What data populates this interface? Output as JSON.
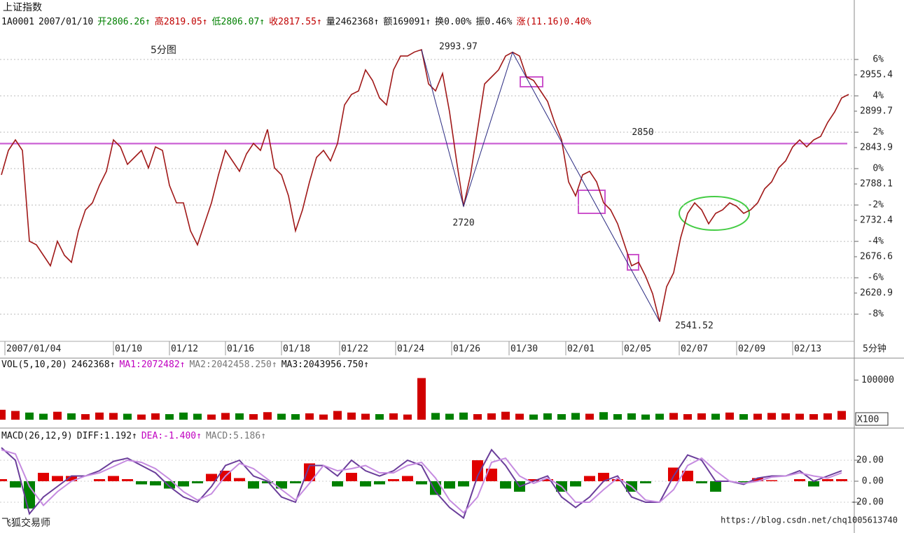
{
  "header": {
    "title": "上证指数",
    "items": [
      "1A0001",
      "2007/01/10",
      "开2806.26↑",
      "高2819.05↑",
      "低2806.07↑",
      "收2817.55↑",
      "量2462368↑",
      "额169091↑",
      "换0.00%",
      "振0.46%",
      "涨(11.16)0.40%"
    ]
  },
  "chart_data": [
    {
      "type": "line",
      "color": "#a01818",
      "grid": true,
      "annotations": [
        "5分图",
        "2993.97",
        "2720",
        "2541.52"
      ],
      "reference_line": 2850,
      "period_label": "5分钟",
      "x": [
        0,
        1,
        2,
        3,
        4,
        5,
        6,
        7,
        8,
        9,
        10,
        11,
        12,
        13,
        14,
        15,
        16,
        17,
        18,
        19,
        20,
        21,
        22,
        23,
        24,
        25,
        26,
        27,
        28,
        29,
        30,
        31,
        32,
        33,
        34,
        35,
        36,
        37,
        38,
        39,
        40,
        41,
        42,
        43,
        44,
        45,
        46,
        47,
        48,
        49,
        50,
        51,
        52,
        53,
        54,
        55,
        56,
        57,
        58,
        59,
        60,
        61,
        62,
        63,
        64,
        65,
        66,
        67,
        68,
        69,
        70,
        71,
        72,
        73,
        74,
        75,
        76,
        77,
        78,
        79,
        80,
        81,
        82,
        83,
        84,
        85,
        86,
        87,
        88,
        89,
        90,
        91,
        92,
        93,
        94,
        95,
        96,
        97,
        98,
        99,
        100,
        101,
        102,
        103,
        104,
        105,
        106,
        107,
        108,
        109,
        110,
        111,
        112,
        113,
        114,
        115,
        116,
        117,
        118,
        119,
        120,
        121
      ],
      "values": [
        2802.1,
        2839.6,
        2855.7,
        2839.6,
        2700.3,
        2694.9,
        2678.8,
        2662.7,
        2700.3,
        2678.8,
        2668.1,
        2716.3,
        2748.5,
        2759.2,
        2786.0,
        2807.5,
        2855.7,
        2845.0,
        2818.2,
        2828.9,
        2839.6,
        2812.8,
        2845.0,
        2839.6,
        2786.0,
        2759.2,
        2759.2,
        2716.3,
        2694.9,
        2727.1,
        2759.2,
        2802.1,
        2839.6,
        2823.5,
        2807.5,
        2834.3,
        2850.3,
        2839.6,
        2871.8,
        2812.8,
        2802.1,
        2769.9,
        2716.3,
        2748.5,
        2791.4,
        2828.9,
        2839.6,
        2823.5,
        2850.3,
        2909.3,
        2925.4,
        2930.7,
        2963.0,
        2946.8,
        2920.0,
        2909.3,
        2963.0,
        2984.3,
        2984.3,
        2990.5,
        2994.0,
        2941.5,
        2930.7,
        2957.5,
        2898.6,
        2823.5,
        2753.9,
        2802.1,
        2871.8,
        2941.5,
        2952.2,
        2963.0,
        2984.3,
        2990.0,
        2984.3,
        2952.2,
        2946.8,
        2930.7,
        2914.7,
        2882.5,
        2855.7,
        2791.4,
        2769.9,
        2802.1,
        2807.5,
        2791.4,
        2759.2,
        2748.5,
        2727.1,
        2694.9,
        2662.7,
        2668.1,
        2646.7,
        2619.9,
        2577.0,
        2630.6,
        2652.0,
        2705.6,
        2743.1,
        2759.2,
        2748.5,
        2727.1,
        2743.1,
        2748.5,
        2759.2,
        2753.9,
        2743.1,
        2748.5,
        2759.2,
        2780.7,
        2791.4,
        2812.8,
        2823.5,
        2845.0,
        2855.7,
        2845.0,
        2855.7,
        2861.1,
        2882.5,
        2898.6,
        2920.0,
        2925.4
      ],
      "xlim": [
        0,
        121.5
      ],
      "xticks": [
        {
          "value": 0.5,
          "label": "2007/01/04"
        },
        {
          "value": 16,
          "label": "01/10"
        },
        {
          "value": 24,
          "label": "01/12"
        },
        {
          "value": 32,
          "label": "01/16"
        },
        {
          "value": 40,
          "label": "01/18"
        },
        {
          "value": 48.3,
          "label": "01/22"
        },
        {
          "value": 56.3,
          "label": "01/24"
        },
        {
          "value": 64.3,
          "label": "01/26"
        },
        {
          "value": 72.5,
          "label": "01/30"
        },
        {
          "value": 80.6,
          "label": "02/01"
        },
        {
          "value": 88.7,
          "label": "02/05"
        },
        {
          "value": 96.8,
          "label": "02/07"
        },
        {
          "value": 105,
          "label": "02/09"
        },
        {
          "value": 113,
          "label": "02/13"
        }
      ],
      "ylim": [
        2550.1,
        3048.7
      ],
      "yticks": [
        2955.4,
        2899.7,
        2843.9,
        2788.1,
        2732.4,
        2676.6,
        2620.9
      ],
      "y2lim": [
        -9.38,
        8.5
      ],
      "y2ticks": [
        {
          "value": 6,
          "label": "6%"
        },
        {
          "value": 4,
          "label": "4%"
        },
        {
          "value": 2,
          "label": "2%"
        },
        {
          "value": 0,
          "label": "0%"
        },
        {
          "value": -2,
          "label": "-2%"
        },
        {
          "value": -4,
          "label": "-4%"
        },
        {
          "value": -6,
          "label": "-6%"
        },
        {
          "value": -8,
          "label": "-8%"
        }
      ]
    },
    {
      "type": "bar",
      "header": [
        "VOL(5,10,20)",
        "2462368↑",
        "MA1:2072482↑",
        "MA2:2042458.250↑",
        "MA3:2043956.750↑"
      ],
      "unit_label": "X100",
      "up_color": "#d00000",
      "down_color": "#008000",
      "x": [
        0,
        2,
        4,
        6,
        8,
        10,
        12,
        14,
        16,
        18,
        20,
        22,
        24,
        26,
        28,
        30,
        32,
        34,
        36,
        38,
        40,
        42,
        44,
        46,
        48,
        50,
        52,
        54,
        56,
        58,
        60,
        62,
        64,
        66,
        68,
        70,
        72,
        74,
        76,
        78,
        80,
        82,
        84,
        86,
        88,
        90,
        92,
        94,
        96,
        98,
        100,
        102,
        104,
        106,
        108,
        110,
        112,
        114,
        116,
        118,
        120
      ],
      "values": [
        25000,
        22000,
        18000,
        15000,
        20000,
        16000,
        14000,
        18000,
        17000,
        15000,
        13000,
        16000,
        14000,
        18000,
        15000,
        13000,
        17000,
        16000,
        14000,
        19000,
        15000,
        14000,
        16000,
        13000,
        22000,
        18000,
        15000,
        14000,
        16000,
        13000,
        105000,
        17000,
        15000,
        18000,
        14000,
        16000,
        20000,
        15000,
        13000,
        16000,
        14000,
        17000,
        15000,
        19000,
        14000,
        16000,
        13000,
        15000,
        17000,
        14000,
        16000,
        15000,
        18000,
        14000,
        15000,
        17000,
        16000,
        15000,
        14000,
        16000,
        22000
      ],
      "xlim": [
        0,
        121.5
      ],
      "ylim": [
        0,
        150000
      ],
      "yticks": [
        100000
      ]
    },
    {
      "type": "macd",
      "header": [
        "MACD(26,12,9)",
        "DIFF:1.192↑",
        "DEA:-1.400↑",
        "MACD:5.186↑"
      ],
      "x": [
        0,
        2,
        4,
        6,
        8,
        10,
        12,
        14,
        16,
        18,
        20,
        22,
        24,
        26,
        28,
        30,
        32,
        34,
        36,
        38,
        40,
        42,
        44,
        46,
        48,
        50,
        52,
        54,
        56,
        58,
        60,
        62,
        64,
        66,
        68,
        70,
        72,
        74,
        76,
        78,
        80,
        82,
        84,
        86,
        88,
        90,
        92,
        94,
        96,
        98,
        100,
        102,
        104,
        106,
        108,
        110,
        112,
        114,
        116,
        118,
        120
      ],
      "series": [
        {
          "color": "#6a3d9a",
          "values": [
            32,
            20,
            -31,
            -15,
            -5,
            5,
            5,
            10,
            19,
            22,
            15,
            8,
            -5,
            -15,
            -20,
            -5,
            15,
            20,
            5,
            0,
            -15,
            -20,
            15,
            15,
            5,
            20,
            10,
            5,
            10,
            20,
            15,
            -10,
            -25,
            -35,
            5,
            30,
            15,
            -5,
            0,
            5,
            -15,
            -25,
            -15,
            0,
            5,
            -15,
            -20,
            -20,
            5,
            25,
            20,
            0,
            0,
            -3,
            3,
            5,
            5,
            10,
            0,
            5,
            10
          ]
        },
        {
          "color": "#c58be0",
          "values": [
            30,
            26,
            -5,
            -23,
            -10,
            0,
            5,
            8,
            14,
            20,
            18,
            12,
            2,
            -10,
            -18,
            -12,
            5,
            17,
            12,
            2,
            -8,
            -18,
            -2,
            15,
            10,
            12,
            15,
            8,
            8,
            15,
            18,
            3,
            -18,
            -30,
            -15,
            18,
            22,
            5,
            -2,
            3,
            -5,
            -20,
            -20,
            -8,
            3,
            -5,
            -18,
            -20,
            -8,
            15,
            22,
            10,
            0,
            -2,
            0,
            4,
            5,
            8,
            5,
            3,
            8
          ]
        }
      ],
      "histogram": [
        2,
        -6,
        -26,
        8,
        5,
        5,
        0,
        2,
        5,
        2,
        -3,
        -4,
        -7,
        -5,
        -2,
        7,
        10,
        3,
        -7,
        -2,
        -7,
        -2,
        17,
        0,
        -5,
        8,
        -5,
        -3,
        2,
        5,
        -3,
        -13,
        -7,
        -5,
        20,
        12,
        -7,
        -10,
        2,
        2,
        -10,
        -5,
        5,
        8,
        2,
        -10,
        -2,
        0,
        13,
        10,
        -2,
        -10,
        0,
        -1,
        3,
        1,
        0,
        2,
        -5,
        2,
        2
      ],
      "up_color": "#e00000",
      "down_color": "#008000",
      "xlim": [
        0,
        121.5
      ],
      "ylim": [
        -38,
        45.3
      ],
      "yticks": [
        {
          "value": 20,
          "label": "20.00"
        },
        {
          "value": 0,
          "label": "0.00"
        },
        {
          "value": -20,
          "label": "-20.00"
        }
      ]
    }
  ],
  "footer": {
    "brand": "飞狐交易师",
    "watermark": "https://blog.csdn.net/chq1005613740"
  }
}
